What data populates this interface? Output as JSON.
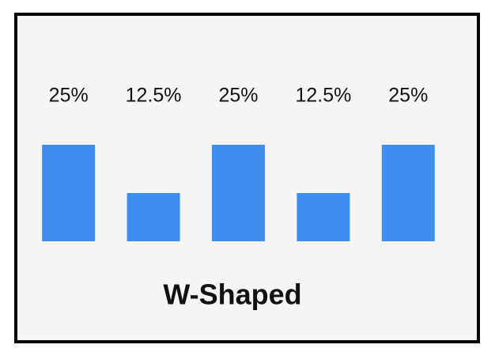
{
  "chart_data": {
    "type": "bar",
    "title": "W-Shaped",
    "values": [
      25,
      12.5,
      25,
      12.5,
      25
    ],
    "value_labels": [
      "25%",
      "12.5%",
      "25%",
      "12.5%",
      "25%"
    ],
    "color": "#3d8ef0"
  }
}
